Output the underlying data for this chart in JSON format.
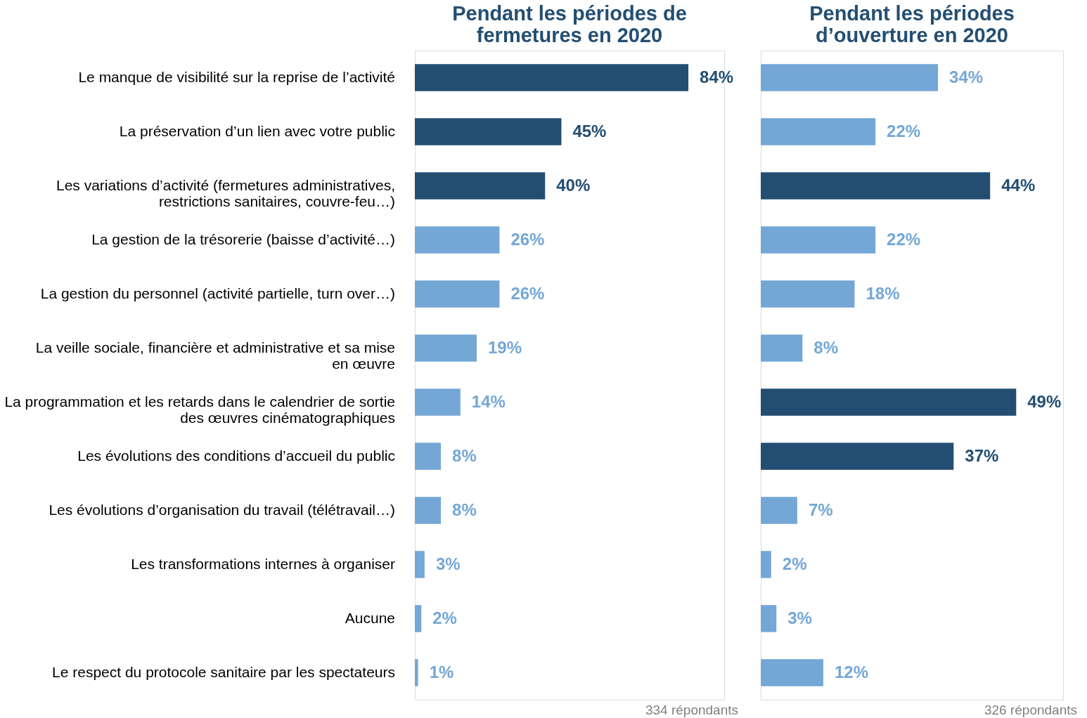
{
  "chart_data": [
    {
      "type": "bar",
      "orientation": "horizontal",
      "title": "Pendant les périodes de fermetures en 2020",
      "tick_labels": "y",
      "xlim": [
        0,
        95
      ],
      "categories": [
        "Le manque de visibilité sur la reprise de l’activité",
        "La préservation d’un lien avec votre public",
        "Les variations d’activité (fermetures administratives, restrictions sanitaires, couvre-feu…)",
        "La gestion de la trésorerie (baisse d’activité…)",
        "La gestion du personnel (activité partielle, turn over…)",
        "La veille sociale, financière et administrative et sa mise en œuvre",
        "La programmation et les retards dans le calendrier de sortie des œuvres cinématographiques",
        "Les évolutions des conditions d’accueil du public",
        "Les évolutions d’organisation du travail (télétravail…)",
        "Les transformations internes à organiser",
        "Aucune",
        "Le respect du protocole sanitaire par les spectateurs"
      ],
      "values": [
        84,
        45,
        40,
        26,
        26,
        19,
        14,
        8,
        8,
        3,
        2,
        1
      ],
      "value_labels": [
        "84%",
        "45%",
        "40%",
        "26%",
        "26%",
        "19%",
        "14%",
        "8%",
        "8%",
        "3%",
        "2%",
        "1%"
      ],
      "colors": [
        "#234e72",
        "#234e72",
        "#234e72",
        "#74a7d6",
        "#74a7d6",
        "#74a7d6",
        "#74a7d6",
        "#74a7d6",
        "#74a7d6",
        "#74a7d6",
        "#74a7d6",
        "#74a7d6"
      ],
      "annotations": [
        "334 répondants"
      ]
    },
    {
      "type": "bar",
      "orientation": "horizontal",
      "title": "Pendant les périodes d’ouverture en 2020",
      "tick_labels": false,
      "xlim": [
        0,
        58
      ],
      "categories": [
        null,
        null,
        null,
        null,
        null,
        null,
        null,
        null,
        null,
        null,
        null,
        null
      ],
      "values": [
        34,
        22,
        44,
        22,
        18,
        8,
        49,
        37,
        7,
        2,
        3,
        12
      ],
      "value_labels": [
        "34%",
        "22%",
        "44%",
        "22%",
        "18%",
        "8%",
        "49%",
        "37%",
        "7%",
        "2%",
        "3%",
        "12%"
      ],
      "colors": [
        "#74a7d6",
        "#74a7d6",
        "#234e72",
        "#74a7d6",
        "#74a7d6",
        "#74a7d6",
        "#234e72",
        "#234e72",
        "#74a7d6",
        "#74a7d6",
        "#74a7d6",
        "#74a7d6"
      ],
      "annotations": [
        "326 répondants"
      ]
    }
  ]
}
